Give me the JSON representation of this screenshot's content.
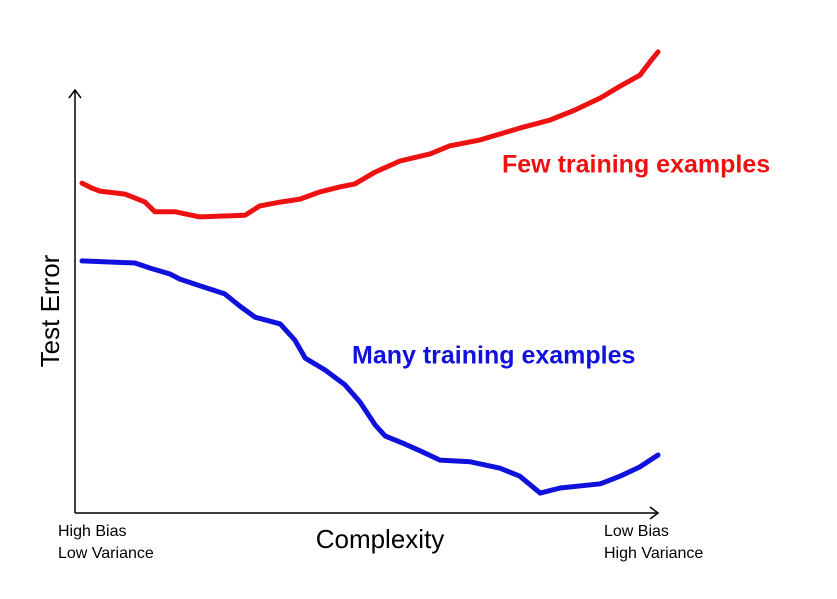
{
  "chart_data": {
    "type": "line",
    "xlabel": "Complexity",
    "ylabel": "Test Error",
    "xlim": [
      0,
      100
    ],
    "ylim": [
      0,
      115
    ],
    "xticks": [],
    "yticks": [],
    "annotations": {
      "left": [
        "High Bias",
        "Low Variance"
      ],
      "right": [
        "Low Bias",
        "High Variance"
      ]
    },
    "series": [
      {
        "name": "Few training examples",
        "color": "#ee1111",
        "x": [
          1.2,
          2.9,
          4.3,
          8.6,
          12.0,
          13.7,
          17.2,
          21.4,
          29.2,
          31.7,
          35.2,
          38.6,
          42.0,
          45.4,
          48.0,
          51.5,
          55.7,
          60.9,
          64.3,
          69.5,
          76.3,
          81.5,
          85.8,
          90.1,
          93.5,
          96.9,
          98.6,
          100
        ],
        "values": [
          78.0,
          76.8,
          76.1,
          75.4,
          73.5,
          71.2,
          71.2,
          70.0,
          70.4,
          72.6,
          73.5,
          74.2,
          75.9,
          77.1,
          77.8,
          80.6,
          83.2,
          84.9,
          86.8,
          88.2,
          91.0,
          92.9,
          95.3,
          98.1,
          100.9,
          103.5,
          106.6,
          109.0
        ]
      },
      {
        "name": "Many training examples",
        "color": "#1111dd",
        "x": [
          1.2,
          10.3,
          12.9,
          16.3,
          18.0,
          21.4,
          25.7,
          28.3,
          30.9,
          35.2,
          37.7,
          39.5,
          42.9,
          46.3,
          48.9,
          51.5,
          53.2,
          56.6,
          59.2,
          62.6,
          67.8,
          72.9,
          76.3,
          79.8,
          83.2,
          90.1,
          93.5,
          96.9,
          100
        ],
        "values": [
          59.6,
          59.1,
          57.9,
          56.5,
          55.3,
          53.7,
          51.8,
          48.9,
          46.3,
          44.7,
          40.9,
          36.6,
          33.8,
          30.3,
          26.2,
          20.8,
          18.2,
          16.3,
          14.7,
          12.5,
          12.1,
          10.6,
          8.7,
          4.7,
          5.9,
          6.9,
          8.7,
          10.9,
          13.7
        ]
      }
    ]
  }
}
